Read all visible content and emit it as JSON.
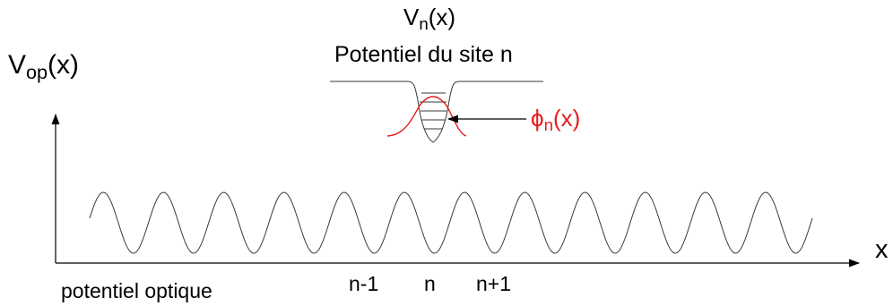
{
  "diagram": {
    "y_axis": {
      "main": "V",
      "sub": "op",
      "rest": "(x)"
    },
    "x_axis": {
      "label": "x"
    },
    "caption_optical": "potentiel optique",
    "site_labels": [
      "n-1",
      "n",
      "n+1"
    ],
    "site_potential": {
      "main": "V",
      "sub": "n",
      "rest": "(x)"
    },
    "site_title": "Potentiel du site n",
    "wavefunction": {
      "main": "ϕ",
      "sub": "n",
      "rest": "(x)",
      "color": "#e31d1d"
    },
    "periods_shown": 12
  }
}
